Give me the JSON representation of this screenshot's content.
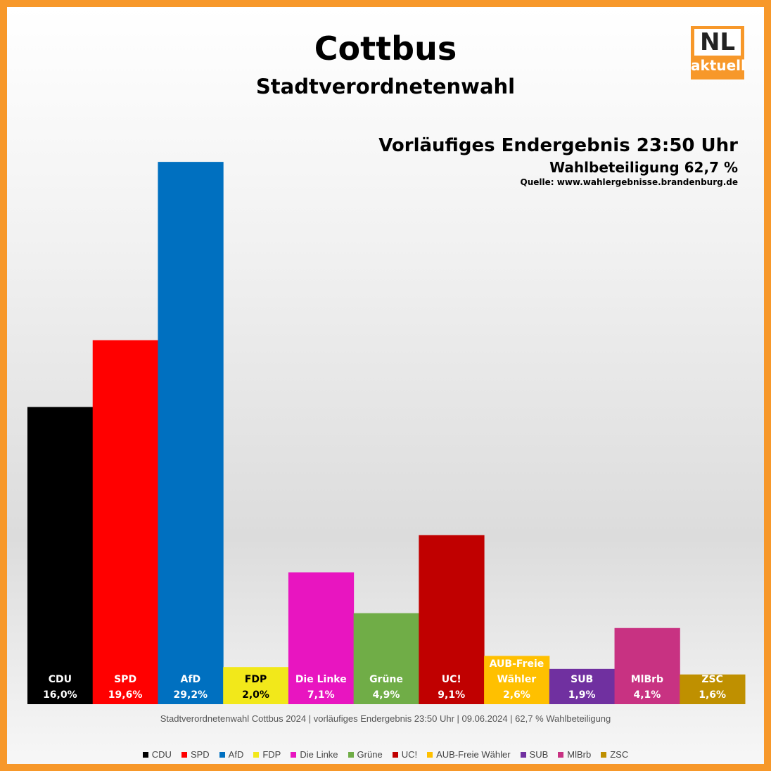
{
  "chart_data": {
    "type": "bar",
    "title": "Cottbus",
    "subtitle": "Stadtverordnetenwahl",
    "annotations": [
      "Vorläufiges Endergebnis 23:50 Uhr",
      "Wahlbeteiligung 62,7 %",
      "Quelle: www.wahlergebnisse.brandenburg.de"
    ],
    "footnote": "Stadtverordnetenwahl Cottbus 2024 | vorläufiges Endergebnis 23:50 Uhr | 09.06.2024 | 62,7 % Wahlbeteiligung",
    "categories": [
      "CDU",
      "SPD",
      "AfD",
      "FDP",
      "Die Linke",
      "Grüne",
      "UC!",
      "AUB-Freie Wähler",
      "SUB",
      "MlBrb",
      "ZSC"
    ],
    "values": [
      16.0,
      19.6,
      29.2,
      2.0,
      7.1,
      4.9,
      9.1,
      2.6,
      1.9,
      4.1,
      1.6
    ],
    "value_labels": [
      "16,0%",
      "19,6%",
      "29,2%",
      "2,0%",
      "7,1%",
      "4,9%",
      "9,1%",
      "2,6%",
      "1,9%",
      "4,1%",
      "1,6%"
    ],
    "colors": [
      "#000000",
      "#ff0000",
      "#0070c0",
      "#f2e81a",
      "#e815c0",
      "#70ad47",
      "#c00000",
      "#ffc000",
      "#7030a0",
      "#c83282",
      "#bf9000"
    ],
    "legend": true
  },
  "logo": {
    "top": "NL",
    "bottom": "aktuell"
  }
}
